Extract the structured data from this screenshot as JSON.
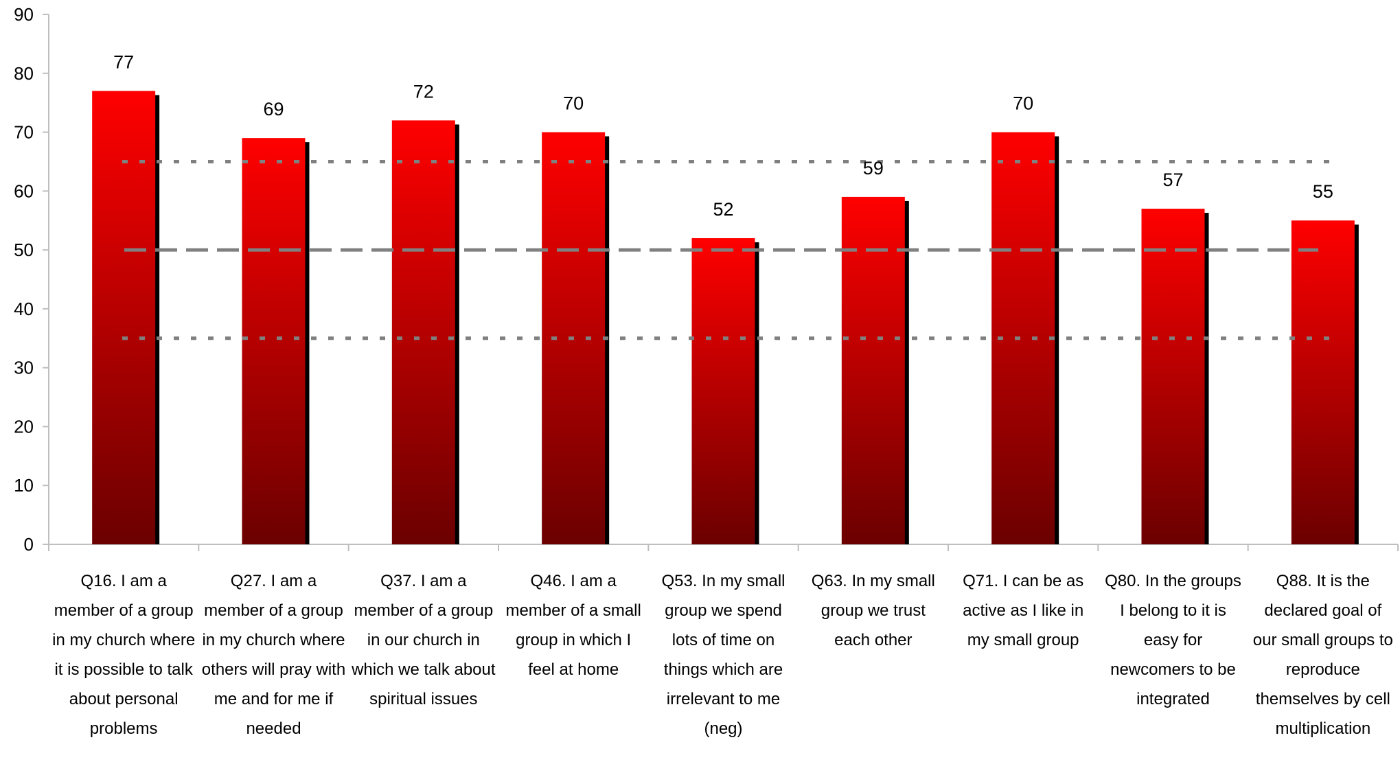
{
  "chart_data": {
    "type": "bar",
    "title": "",
    "xlabel": "",
    "ylabel": "",
    "ylim": [
      0,
      90
    ],
    "yticks": [
      0,
      10,
      20,
      30,
      40,
      50,
      60,
      70,
      80,
      90
    ],
    "categories": [
      "Q16. I am a member of a group in my church where it is possible to talk about personal problems",
      "Q27. I am a member of a group in my church where others will pray with me and for me if needed",
      "Q37. I am a member of a group in our church in which we talk about spiritual issues",
      "Q46. I am a member of a small group in which I feel at home",
      "Q53. In my small group we spend lots of time on things which are irrelevant to me (neg)",
      "Q63. In my small group we trust each other",
      "Q71. I can be as active as I like in my small group",
      "Q80. In the groups I belong to it is easy for newcomers to be integrated",
      "Q88. It is the declared goal of our small groups to reproduce themselves by cell multiplication"
    ],
    "values": [
      77,
      69,
      72,
      70,
      52,
      59,
      70,
      57,
      55
    ],
    "data_labels": [
      "77",
      "69",
      "72",
      "70",
      "52",
      "59",
      "70",
      "57",
      "55"
    ],
    "reference_lines": [
      {
        "value": 65,
        "style": "dotted"
      },
      {
        "value": 50,
        "style": "dashed"
      },
      {
        "value": 35,
        "style": "dotted"
      }
    ],
    "grid": false,
    "legend": "none",
    "colors": {
      "bar_top": "#ff0000",
      "bar_bottom": "#6b0000",
      "shadow": "#000000",
      "reference_line": "#808080",
      "axis": "#bfbfbf"
    }
  }
}
